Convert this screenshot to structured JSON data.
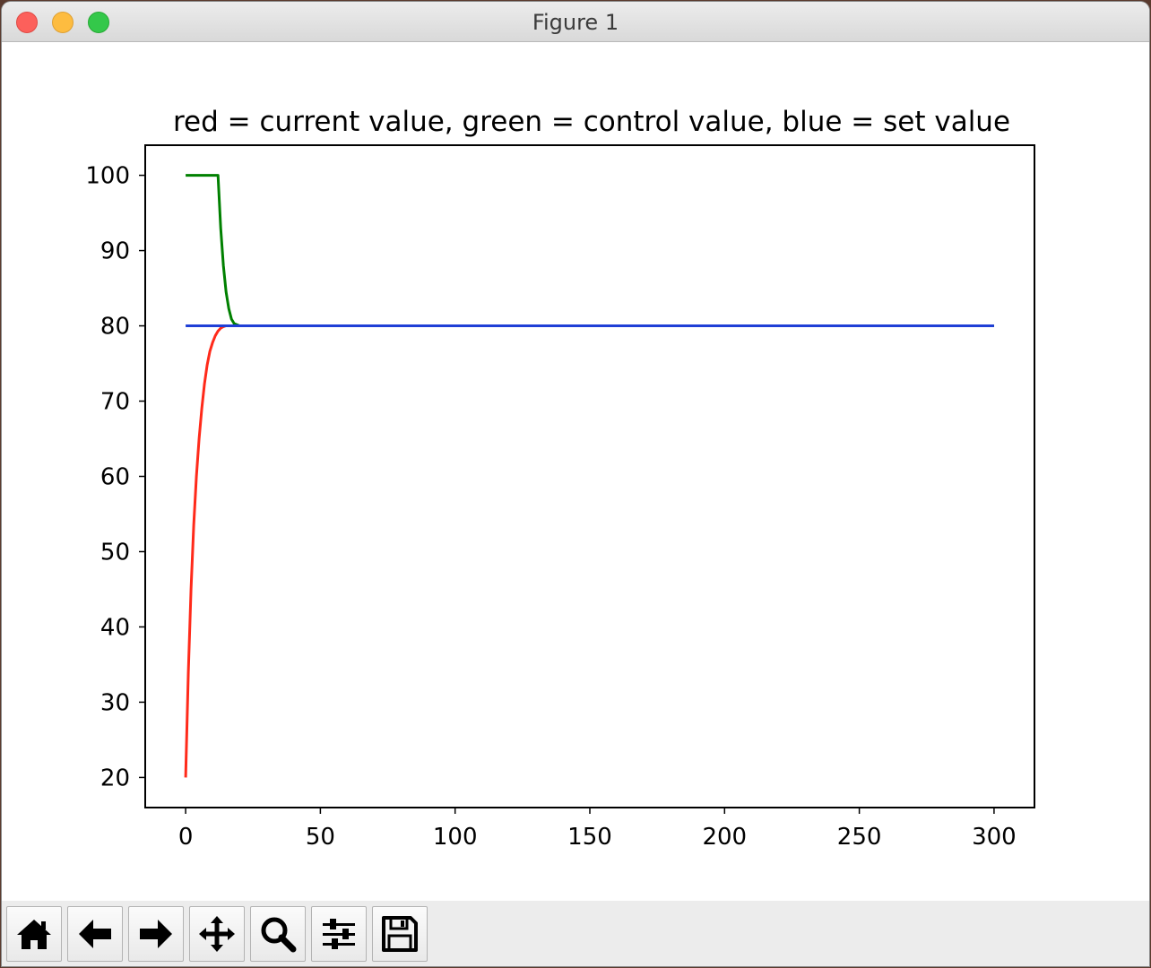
{
  "window": {
    "title": "Figure 1"
  },
  "toolbar": {
    "buttons": [
      {
        "name": "home-button",
        "icon": "home-icon"
      },
      {
        "name": "back-button",
        "icon": "arrow-left-icon"
      },
      {
        "name": "forward-button",
        "icon": "arrow-right-icon"
      },
      {
        "name": "pan-button",
        "icon": "move-icon"
      },
      {
        "name": "zoom-button",
        "icon": "magnifier-icon"
      },
      {
        "name": "configure-subplots-button",
        "icon": "sliders-icon"
      },
      {
        "name": "save-button",
        "icon": "floppy-disk-icon"
      }
    ]
  },
  "chart_data": {
    "type": "line",
    "title": "red = current value, green = control value, blue = set value",
    "xlabel": "",
    "ylabel": "",
    "xlim": [
      -15,
      315
    ],
    "ylim": [
      16,
      104
    ],
    "xticks": [
      0,
      50,
      100,
      150,
      200,
      250,
      300
    ],
    "yticks": [
      20,
      30,
      40,
      50,
      60,
      70,
      80,
      90,
      100
    ],
    "grid": false,
    "series": [
      {
        "color": "#ff2a1a",
        "x": [
          0,
          1,
          2,
          3,
          4,
          5,
          6,
          7,
          8,
          9,
          10,
          11,
          12,
          13,
          14,
          15,
          16,
          17,
          18,
          20,
          30,
          300
        ],
        "y": [
          20,
          34,
          45,
          53.5,
          60,
          65,
          69,
          72.3,
          74.8,
          76.6,
          77.8,
          78.7,
          79.3,
          79.7,
          79.9,
          80,
          80,
          80,
          80,
          80,
          80,
          80
        ]
      },
      {
        "color": "#008000",
        "x": [
          0,
          12,
          13,
          14,
          15,
          16,
          17,
          18,
          20,
          30,
          300
        ],
        "y": [
          100,
          100,
          93,
          88,
          84.5,
          82.3,
          80.9,
          80.3,
          80,
          80,
          80
        ]
      },
      {
        "color": "#1f3fd6",
        "x": [
          0,
          300
        ],
        "y": [
          80,
          80
        ]
      }
    ]
  }
}
